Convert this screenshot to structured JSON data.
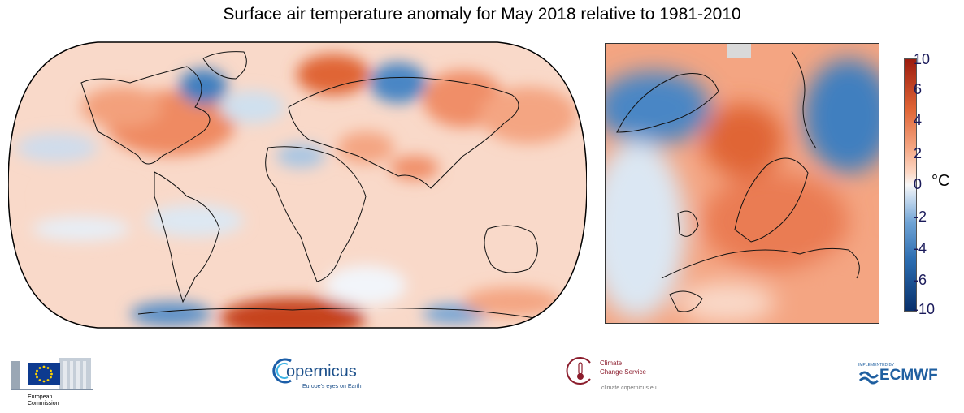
{
  "title": "Surface air temperature anomaly for May 2018 relative to 1981-2010",
  "colorbar": {
    "ticks": [
      "10",
      "6",
      "4",
      "2",
      "0",
      "-2",
      "-4",
      "-6",
      "-10"
    ],
    "unit": "°C",
    "colors": [
      "#08306b",
      "#2b6cb0",
      "#6fa3d5",
      "#c9dcef",
      "#f7f7f7",
      "#fcd7c4",
      "#f4a582",
      "#e06536",
      "#9b1b0e"
    ]
  },
  "logos": {
    "eu": {
      "label_line1": "European",
      "label_line2": "Commission"
    },
    "copernicus": {
      "name": "opernicus",
      "tagline": "Europe's eyes on Earth"
    },
    "c3s": {
      "line1": "Climate",
      "line2": "Change Service",
      "url": "climate.copernicus.eu"
    },
    "ecmwf": {
      "small": "IMPLEMENTED BY",
      "name": "ECMWF"
    }
  }
}
